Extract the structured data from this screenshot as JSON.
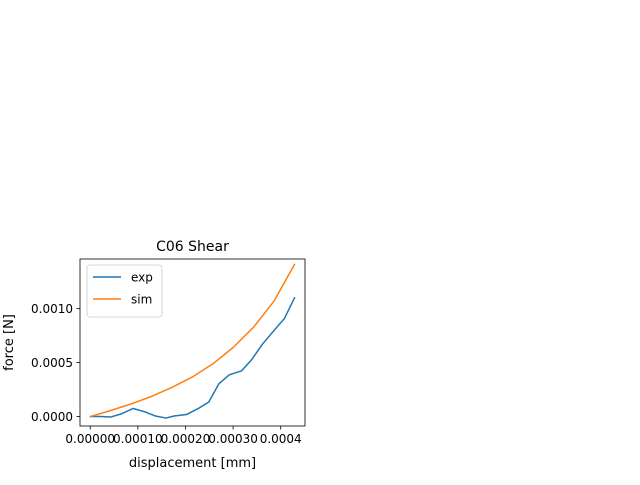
{
  "chart_data": {
    "type": "line",
    "title": "C06 Shear",
    "xlabel": "displacement [mm]",
    "ylabel": "force [N]",
    "xlim": [
      -2.15e-05,
      0.000451
    ],
    "ylim": [
      -8.77e-05,
      0.00146
    ],
    "xticks": [
      {
        "value": 0.0,
        "label": "0.00000"
      },
      {
        "value": 0.0001,
        "label": "0.00010"
      },
      {
        "value": 0.0002,
        "label": "0.00020"
      },
      {
        "value": 0.0003,
        "label": "0.00030"
      },
      {
        "value": 0.0004,
        "label": "0.0004"
      }
    ],
    "yticks": [
      {
        "value": 0.0,
        "label": "0.0000"
      },
      {
        "value": 0.0005,
        "label": "0.0005"
      },
      {
        "value": 0.001,
        "label": "0.0010"
      }
    ],
    "legend": {
      "placement": "upper left"
    },
    "grid": false,
    "series": [
      {
        "name": "exp",
        "color": "#1f77b4",
        "x": [
          0.0,
          2.15e-05,
          4.29e-05,
          6.44e-05,
          9.01e-05,
          0.000116,
          0.000137,
          0.000159,
          0.000176,
          0.000202,
          0.000227,
          0.000249,
          0.00027,
          0.000292,
          0.000318,
          0.000339,
          0.000361,
          0.000386,
          0.000408,
          0.000429
        ],
        "y": [
          0.0,
          0.0,
          -4.7e-06,
          2.33e-05,
          7.46e-05,
          4.2e-05,
          4.7e-06,
          -1.4e-05,
          4.7e-06,
          1.87e-05,
          7.47e-05,
          0.000135,
          0.000303,
          0.000387,
          0.000424,
          0.000527,
          0.000667,
          0.000798,
          0.00091,
          0.0011
        ]
      },
      {
        "name": "sim",
        "color": "#ff7f0e",
        "x": [
          0.0,
          4.29e-05,
          8.58e-05,
          0.000129,
          0.000172,
          0.000215,
          0.000258,
          0.0003,
          0.000343,
          0.000386,
          0.000429
        ],
        "y": [
          0.0,
          5.6e-05,
          0.000117,
          0.000187,
          0.000271,
          0.000368,
          0.00049,
          0.00064,
          0.000828,
          0.00107,
          0.00141
        ]
      }
    ]
  }
}
